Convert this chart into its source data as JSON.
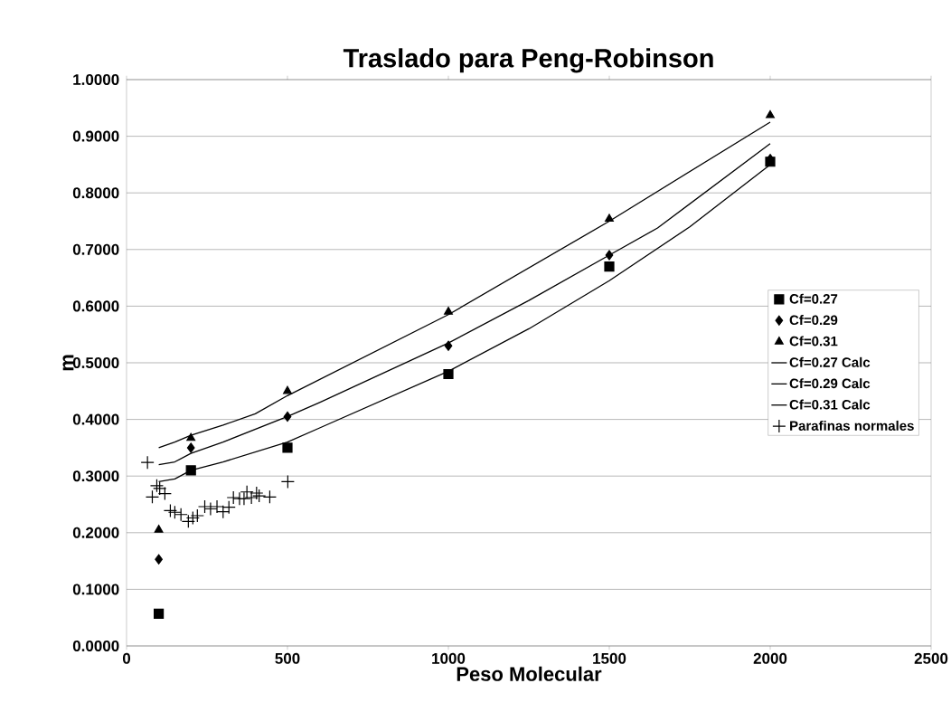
{
  "chart_data": {
    "type": "scatter",
    "title": "Traslado para Peng-Robinson",
    "xlabel": "Peso Molecular",
    "ylabel": "m",
    "xlim": [
      0,
      2500
    ],
    "xticks": [
      0,
      500,
      1000,
      1500,
      2000,
      2500
    ],
    "ylim": [
      0,
      1
    ],
    "yticks": [
      {
        "value": 0,
        "label": "0.0000"
      },
      {
        "value": 0.1,
        "label": "0.1000"
      },
      {
        "value": 0.2,
        "label": "0.2000"
      },
      {
        "value": 0.3,
        "label": "0.3000"
      },
      {
        "value": 0.4,
        "label": "0.4000"
      },
      {
        "value": 0.5,
        "label": "0.5000"
      },
      {
        "value": 0.6,
        "label": "0.6000"
      },
      {
        "value": 0.7,
        "label": "0.7000"
      },
      {
        "value": 0.8,
        "label": "0.8000"
      },
      {
        "value": 0.9,
        "label": "0.9000"
      },
      {
        "value": 1,
        "label": "1.0000"
      }
    ],
    "grid": "y",
    "legend": "right",
    "series": [
      {
        "name": "Cf=0.27",
        "marker": "square",
        "color": "#000000",
        "x": [
          100,
          200,
          500,
          1000,
          1500,
          2000
        ],
        "values": [
          0.057,
          0.31,
          0.35,
          0.48,
          0.67,
          0.855
        ]
      },
      {
        "name": "Cf=0.29",
        "marker": "diamond",
        "color": "#000000",
        "x": [
          100,
          200,
          500,
          1000,
          1500,
          2000
        ],
        "values": [
          0.153,
          0.35,
          0.405,
          0.53,
          0.69,
          0.86
        ]
      },
      {
        "name": "Cf=0.31",
        "marker": "triangle",
        "color": "#000000",
        "x": [
          100,
          200,
          500,
          1000,
          1500,
          2000
        ],
        "values": [
          0.205,
          0.367,
          0.45,
          0.59,
          0.754,
          0.937
        ]
      },
      {
        "name": "Cf=0.27 Calc",
        "type": "line",
        "marker": "none",
        "line_style": "solid",
        "color": "#000000",
        "x": [
          100,
          150,
          200,
          300,
          500,
          600,
          1000,
          1250,
          1500,
          1750,
          2000
        ],
        "values": [
          0.29,
          0.295,
          0.31,
          0.325,
          0.36,
          0.385,
          0.485,
          0.56,
          0.645,
          0.74,
          0.85
        ]
      },
      {
        "name": "Cf=0.29 Calc",
        "type": "line",
        "marker": "none",
        "line_style": "solid",
        "color": "#000000",
        "x": [
          100,
          150,
          200,
          300,
          500,
          600,
          1000,
          1250,
          1500,
          1650,
          2000
        ],
        "values": [
          0.32,
          0.325,
          0.34,
          0.36,
          0.405,
          0.43,
          0.535,
          0.61,
          0.69,
          0.738,
          0.887
        ]
      },
      {
        "name": "Cf=0.31 Calc",
        "type": "line",
        "marker": "none",
        "line_style": "solid",
        "color": "#000000",
        "x": [
          100,
          150,
          200,
          300,
          400,
          500,
          1000,
          1500,
          2000
        ],
        "values": [
          0.35,
          0.36,
          0.372,
          0.39,
          0.41,
          0.442,
          0.585,
          0.75,
          0.925
        ]
      },
      {
        "name": "Parafinas normales",
        "marker": "cross",
        "color": "#000000",
        "x": [
          65,
          94,
          80,
          103,
          119,
          136,
          150,
          169,
          192,
          206,
          220,
          243,
          261,
          281,
          300,
          318,
          332,
          351,
          365,
          374,
          388,
          404,
          412,
          445,
          501
        ],
        "values": [
          0.324,
          0.283,
          0.263,
          0.278,
          0.269,
          0.239,
          0.236,
          0.232,
          0.22,
          0.226,
          0.23,
          0.246,
          0.242,
          0.246,
          0.237,
          0.245,
          0.262,
          0.26,
          0.26,
          0.272,
          0.262,
          0.27,
          0.265,
          0.263,
          0.29
        ]
      }
    ]
  }
}
